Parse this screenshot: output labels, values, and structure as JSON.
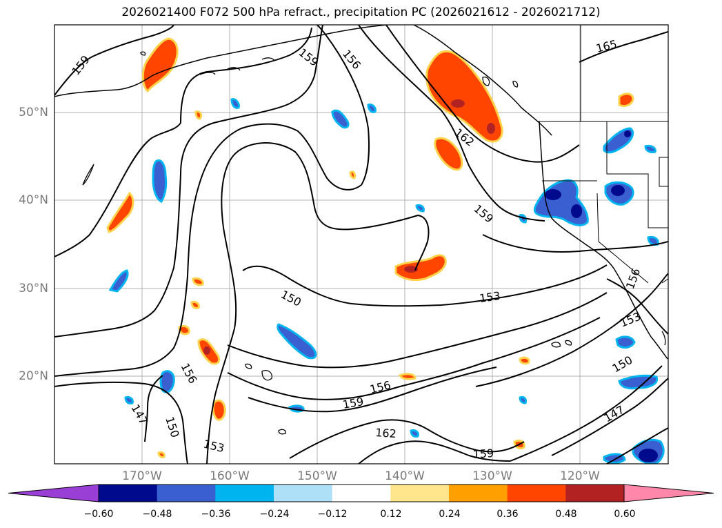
{
  "title": "2026021400 F072 500 hPa refract., precipitation PC (2026021612 - 2026021712)",
  "lat_labels": [
    "50°N",
    "40°N",
    "30°N",
    "20°N"
  ],
  "lon_labels": [
    "170°W",
    "160°W",
    "150°W",
    "140°W",
    "130°W",
    "120°W"
  ],
  "contour_labels": [
    "159",
    "159",
    "156",
    "165",
    "162",
    "159",
    "150",
    "153",
    "153",
    "156",
    "156",
    "159",
    "162",
    "159",
    "153",
    "150",
    "147",
    "147",
    "150",
    "156"
  ],
  "colorbar": {
    "colors": [
      "#9a3fd6",
      "#000a8c",
      "#3a5fd0",
      "#00b4f0",
      "#aee0f8",
      "#ffffff",
      "#ffe68c",
      "#ff9f00",
      "#ff4500",
      "#b22222",
      "#ff88aa"
    ],
    "tick_labels": [
      "−0.60",
      "−0.48",
      "−0.36",
      "−0.24",
      "−0.12",
      "0.12",
      "0.24",
      "0.36",
      "0.48",
      "0.60"
    ]
  }
}
